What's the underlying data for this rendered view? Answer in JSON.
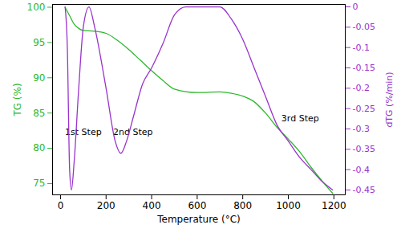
{
  "chart_data": {
    "type": "line",
    "xlabel": "Temperature (°C)",
    "ylabel": "TG (%)",
    "y2label": "dTG (%/min)",
    "xlim": [
      -35,
      1250
    ],
    "xticks": [
      0,
      200,
      400,
      600,
      800,
      1000,
      1200
    ],
    "ylim": [
      73.4,
      100.4
    ],
    "yticks": [
      75,
      80,
      85,
      90,
      95,
      100
    ],
    "y2lim": [
      -0.462,
      0.006
    ],
    "y2ticks": [
      0,
      -0.05,
      -0.1,
      -0.15,
      -0.2,
      -0.25,
      -0.3,
      -0.35,
      -0.4,
      -0.45
    ],
    "grid": false,
    "series": [
      {
        "name": "TG (%)",
        "color": "#2db82d",
        "x": [
          20,
          40,
          60,
          80,
          100,
          150,
          200,
          250,
          300,
          350,
          400,
          450,
          500,
          600,
          700,
          750,
          800,
          850,
          900,
          950,
          1000,
          1050,
          1100,
          1150,
          1195
        ],
        "values": [
          100,
          98.8,
          97.6,
          97,
          96.7,
          96.6,
          96.3,
          95.3,
          94,
          92.5,
          91,
          89.6,
          88.4,
          87.9,
          88,
          87.8,
          87.4,
          86.6,
          85,
          83,
          81.3,
          79.5,
          77.3,
          75.3,
          73.6
        ]
      },
      {
        "name": "dTG (%/min)",
        "color": "#9933cc",
        "axis": "y2",
        "x": [
          20,
          30,
          40,
          48,
          60,
          80,
          100,
          125,
          150,
          200,
          240,
          265,
          290,
          320,
          360,
          400,
          450,
          500,
          550,
          650,
          700,
          750,
          800,
          850,
          900,
          950,
          1000,
          1050,
          1100,
          1150,
          1195
        ],
        "values": [
          0,
          -0.1,
          -0.4,
          -0.45,
          -0.38,
          -0.2,
          -0.05,
          0,
          -0.05,
          -0.2,
          -0.33,
          -0.36,
          -0.33,
          -0.27,
          -0.19,
          -0.15,
          -0.09,
          -0.02,
          0,
          0,
          0,
          -0.03,
          -0.08,
          -0.15,
          -0.22,
          -0.29,
          -0.33,
          -0.37,
          -0.4,
          -0.43,
          -0.45
        ]
      }
    ],
    "annotations": [
      {
        "text": "1st Step",
        "x": 100,
        "y": 82.3
      },
      {
        "text": "2nd Step",
        "x": 318,
        "y": 82.3
      },
      {
        "text": "3rd Step",
        "x": 1052,
        "y": 84.2
      }
    ]
  }
}
